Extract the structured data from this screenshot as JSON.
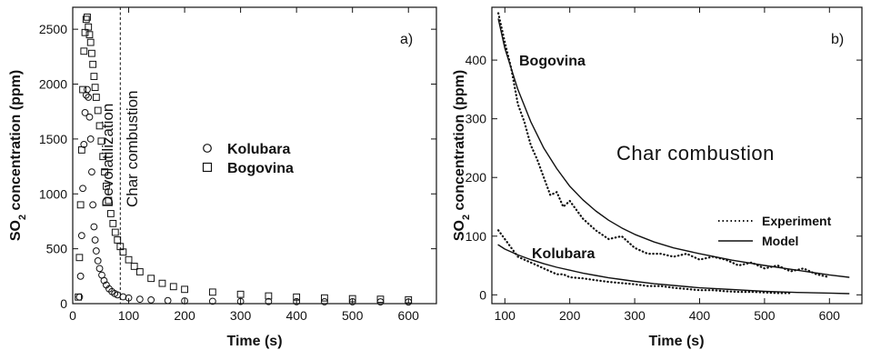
{
  "chart_data": [
    {
      "type": "scatter",
      "panel_label": "a)",
      "xlabel": "Time (s)",
      "ylabel": "SO2 concentration (ppm)",
      "ylabel_parts": [
        "SO",
        "2",
        " concentration (ppm)"
      ],
      "xlim": [
        0,
        650
      ],
      "ylim": [
        0,
        2700
      ],
      "x_ticks": [
        0,
        100,
        200,
        300,
        400,
        500,
        600
      ],
      "y_ticks": [
        0,
        500,
        1000,
        1500,
        2000,
        2500
      ],
      "grid": false,
      "legend_position": "center-right",
      "phase_divider_x": 85,
      "annotations": [
        "Devolatilization",
        "Char combustion"
      ],
      "series": [
        {
          "name": "Kolubara",
          "marker": "circle",
          "x": [
            12,
            14,
            16,
            18,
            20,
            22,
            24,
            26,
            28,
            30,
            32,
            34,
            36,
            38,
            40,
            42,
            45,
            48,
            52,
            56,
            60,
            65,
            70,
            75,
            80,
            90,
            100,
            120,
            140,
            170,
            200,
            250,
            300,
            350,
            400,
            450,
            500,
            550,
            600
          ],
          "y": [
            60,
            250,
            620,
            1050,
            1450,
            1740,
            1900,
            1950,
            1880,
            1700,
            1500,
            1200,
            900,
            700,
            580,
            480,
            390,
            320,
            260,
            210,
            170,
            135,
            110,
            92,
            80,
            62,
            52,
            40,
            34,
            28,
            25,
            22,
            20,
            19,
            18,
            17,
            17,
            16,
            15
          ]
        },
        {
          "name": "Bogovina",
          "marker": "square",
          "x": [
            10,
            12,
            14,
            16,
            18,
            20,
            22,
            24,
            26,
            28,
            30,
            32,
            34,
            36,
            38,
            40,
            42,
            45,
            48,
            51,
            54,
            57,
            60,
            64,
            68,
            72,
            76,
            80,
            85,
            90,
            100,
            110,
            120,
            140,
            160,
            180,
            200,
            250,
            300,
            350,
            400,
            450,
            500,
            550,
            600
          ],
          "y": [
            60,
            420,
            900,
            1400,
            1950,
            2300,
            2470,
            2590,
            2610,
            2520,
            2450,
            2380,
            2280,
            2180,
            2070,
            1970,
            1880,
            1760,
            1620,
            1480,
            1340,
            1200,
            1070,
            940,
            820,
            730,
            650,
            580,
            520,
            470,
            400,
            340,
            290,
            230,
            185,
            155,
            130,
            105,
            85,
            70,
            60,
            52,
            45,
            40,
            35
          ]
        }
      ]
    },
    {
      "type": "line",
      "panel_label": "b)",
      "xlabel": "Time (s)",
      "ylabel": "SO2 concentration (ppm)",
      "ylabel_parts": [
        "SO",
        "2",
        " concentration (ppm)"
      ],
      "xlim": [
        80,
        650
      ],
      "ylim": [
        -15,
        490
      ],
      "x_ticks": [
        100,
        200,
        300,
        400,
        500,
        600
      ],
      "y_ticks": [
        0,
        100,
        200,
        300,
        400
      ],
      "grid": false,
      "legend_position": "right",
      "title_annotation": "Char combustion",
      "legend": [
        {
          "label": "Experiment",
          "style": "dotted"
        },
        {
          "label": "Model",
          "style": "solid"
        }
      ],
      "series_labels": [
        "Bogovina",
        "Kolubara"
      ],
      "series": [
        {
          "label_ref": "Bogovina",
          "style": "dotted",
          "x": [
            90,
            100,
            110,
            120,
            130,
            140,
            150,
            160,
            170,
            180,
            190,
            200,
            220,
            240,
            260,
            280,
            300,
            320,
            340,
            360,
            380,
            400,
            420,
            440,
            460,
            480,
            500,
            520,
            540,
            560,
            580,
            600
          ],
          "y": [
            480,
            430,
            385,
            325,
            295,
            255,
            230,
            200,
            170,
            175,
            150,
            160,
            130,
            110,
            95,
            100,
            80,
            70,
            70,
            65,
            70,
            60,
            65,
            60,
            50,
            55,
            45,
            50,
            40,
            45,
            35,
            30
          ]
        },
        {
          "label_ref": "Bogovina",
          "style": "solid",
          "x": [
            90,
            100,
            120,
            140,
            160,
            180,
            200,
            220,
            240,
            260,
            280,
            300,
            330,
            360,
            400,
            450,
            500,
            550,
            600,
            630
          ],
          "y": [
            470,
            420,
            350,
            295,
            250,
            215,
            185,
            162,
            143,
            127,
            114,
            103,
            90,
            80,
            70,
            59,
            50,
            42,
            34,
            30
          ]
        },
        {
          "label_ref": "Kolubara",
          "style": "dotted",
          "x": [
            90,
            100,
            110,
            120,
            130,
            140,
            150,
            160,
            170,
            180,
            190,
            200,
            220,
            240,
            260,
            280,
            300,
            320,
            340,
            360,
            380,
            400,
            420,
            440,
            460,
            480,
            500,
            520,
            540
          ],
          "y": [
            110,
            95,
            80,
            65,
            60,
            55,
            50,
            45,
            40,
            35,
            35,
            30,
            28,
            25,
            22,
            20,
            18,
            15,
            15,
            12,
            10,
            8,
            8,
            6,
            5,
            5,
            4,
            3,
            3
          ]
        },
        {
          "label_ref": "Kolubara",
          "style": "solid",
          "x": [
            90,
            100,
            120,
            140,
            160,
            180,
            200,
            220,
            240,
            260,
            280,
            300,
            330,
            360,
            400,
            450,
            500,
            550,
            600,
            630
          ],
          "y": [
            85,
            78,
            68,
            60,
            53,
            47,
            42,
            37,
            33,
            29,
            26,
            23,
            19,
            16,
            12,
            9,
            6,
            4,
            3,
            2
          ]
        }
      ]
    }
  ]
}
